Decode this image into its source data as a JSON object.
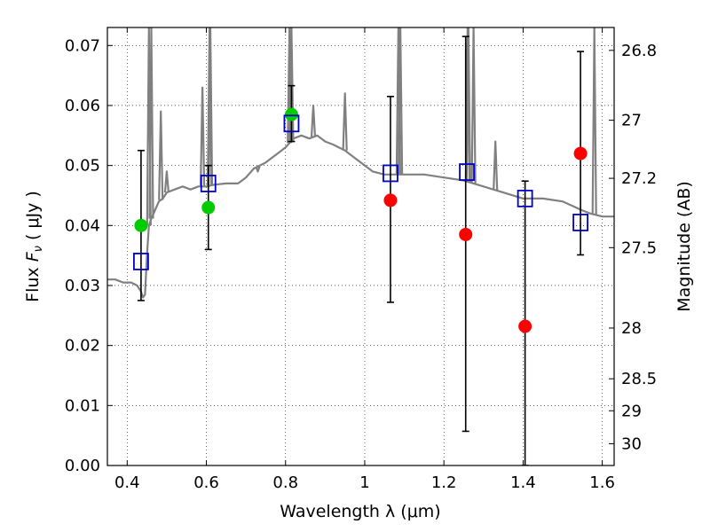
{
  "chart_data": {
    "type": "scatter",
    "title": "",
    "xlabel": "Wavelength  λ (μm)",
    "ylabel_prefix": "Flux  ",
    "ylabel_math": "F",
    "ylabel_sub": "ν",
    "ylabel_suffix": "  ( μJy )",
    "y2label": "Magnitude (AB)",
    "xlim": [
      0.35,
      1.63
    ],
    "ylim": [
      0.0,
      0.073
    ],
    "x_ticks": [
      0.4,
      0.6,
      0.8,
      1.0,
      1.2,
      1.4,
      1.6
    ],
    "x_tick_labels": [
      "0.4",
      "0.6",
      "0.8",
      "1",
      "1.2",
      "1.4",
      "1.6"
    ],
    "y_ticks": [
      0.0,
      0.01,
      0.02,
      0.03,
      0.04,
      0.05,
      0.06,
      0.07
    ],
    "y_tick_labels": [
      "0.00",
      "0.01",
      "0.02",
      "0.03",
      "0.04",
      "0.05",
      "0.06",
      "0.07"
    ],
    "y2_ticks": [
      {
        "label": "26.8",
        "mag": 26.8
      },
      {
        "label": "27",
        "mag": 27.0
      },
      {
        "label": "27.2",
        "mag": 27.2
      },
      {
        "label": "27.5",
        "mag": 27.5
      },
      {
        "label": "28",
        "mag": 28.0
      },
      {
        "label": "28.5",
        "mag": 28.5
      },
      {
        "label": "29",
        "mag": 29.0
      },
      {
        "label": "30",
        "mag": 30.0
      }
    ],
    "grid": true,
    "colors": {
      "model": "#808080",
      "measured_green": "#00cc00",
      "measured_red": "#ff0000",
      "model_photometry": "#0000cc",
      "error_bars": "#000000"
    },
    "model_spectrum": {
      "x": [
        0.35,
        0.37,
        0.39,
        0.41,
        0.425,
        0.43,
        0.435,
        0.44,
        0.445,
        0.45,
        0.455,
        0.46,
        0.47,
        0.48,
        0.49,
        0.5,
        0.52,
        0.54,
        0.56,
        0.58,
        0.6,
        0.62,
        0.65,
        0.68,
        0.7,
        0.72,
        0.75,
        0.78,
        0.8,
        0.82,
        0.84,
        0.86,
        0.88,
        0.9,
        0.92,
        0.95,
        0.98,
        1.0,
        1.02,
        1.05,
        1.08,
        1.1,
        1.15,
        1.2,
        1.25,
        1.3,
        1.35,
        1.4,
        1.45,
        1.5,
        1.55,
        1.57,
        1.6,
        1.63
      ],
      "y": [
        0.031,
        0.031,
        0.0305,
        0.0305,
        0.03,
        0.0295,
        0.029,
        0.028,
        0.0285,
        0.035,
        0.04,
        0.041,
        0.0425,
        0.044,
        0.0445,
        0.0455,
        0.046,
        0.0465,
        0.046,
        0.0465,
        0.0465,
        0.0468,
        0.047,
        0.047,
        0.048,
        0.0495,
        0.0505,
        0.052,
        0.053,
        0.0545,
        0.055,
        0.0545,
        0.055,
        0.054,
        0.0535,
        0.0525,
        0.051,
        0.05,
        0.049,
        0.0485,
        0.0485,
        0.0485,
        0.0485,
        0.048,
        0.0475,
        0.0465,
        0.0455,
        0.0445,
        0.0445,
        0.044,
        0.0425,
        0.042,
        0.0415,
        0.0415
      ]
    },
    "emission_lines": [
      {
        "x": 0.455,
        "peak": 0.073
      },
      {
        "x": 0.461,
        "peak": 0.073
      },
      {
        "x": 0.485,
        "peak": 0.059
      },
      {
        "x": 0.5,
        "peak": 0.049
      },
      {
        "x": 0.59,
        "peak": 0.063
      },
      {
        "x": 0.608,
        "peak": 0.073
      },
      {
        "x": 0.61,
        "peak": 0.073
      },
      {
        "x": 0.73,
        "peak": 0.049
      },
      {
        "x": 0.81,
        "peak": 0.073
      },
      {
        "x": 0.815,
        "peak": 0.073
      },
      {
        "x": 0.87,
        "peak": 0.06
      },
      {
        "x": 0.95,
        "peak": 0.062
      },
      {
        "x": 1.085,
        "peak": 0.073
      },
      {
        "x": 1.09,
        "peak": 0.073
      },
      {
        "x": 1.26,
        "peak": 0.073
      },
      {
        "x": 1.262,
        "peak": 0.073
      },
      {
        "x": 1.275,
        "peak": 0.073
      },
      {
        "x": 1.33,
        "peak": 0.054
      },
      {
        "x": 1.58,
        "peak": 0.073
      }
    ],
    "series": [
      {
        "marker": "circle",
        "points": [
          {
            "x": 0.435,
            "y": 0.04,
            "color": "green"
          },
          {
            "x": 0.605,
            "y": 0.043,
            "color": "green"
          },
          {
            "x": 0.815,
            "y": 0.0585,
            "color": "green"
          },
          {
            "x": 1.065,
            "y": 0.0442,
            "color": "red"
          },
          {
            "x": 1.255,
            "y": 0.0385,
            "color": "red"
          },
          {
            "x": 1.405,
            "y": 0.0232,
            "color": "red"
          },
          {
            "x": 1.545,
            "y": 0.052,
            "color": "red"
          }
        ],
        "errors": [
          {
            "x": 0.435,
            "low": 0.0275,
            "high": 0.0525
          },
          {
            "x": 0.605,
            "low": 0.036,
            "high": 0.05
          },
          {
            "x": 0.815,
            "low": 0.054,
            "high": 0.0633
          },
          {
            "x": 1.065,
            "low": 0.0272,
            "high": 0.0615
          },
          {
            "x": 1.255,
            "low": 0.0057,
            "high": 0.0715
          },
          {
            "x": 1.405,
            "low": 0.0,
            "high": 0.0474
          },
          {
            "x": 1.545,
            "low": 0.0351,
            "high": 0.069
          }
        ]
      },
      {
        "marker": "square",
        "points": [
          {
            "x": 0.435,
            "y": 0.034
          },
          {
            "x": 0.605,
            "y": 0.047
          },
          {
            "x": 0.815,
            "y": 0.057
          },
          {
            "x": 1.065,
            "y": 0.0487
          },
          {
            "x": 1.258,
            "y": 0.0489
          },
          {
            "x": 1.405,
            "y": 0.0445
          },
          {
            "x": 1.545,
            "y": 0.0405
          }
        ]
      }
    ]
  }
}
